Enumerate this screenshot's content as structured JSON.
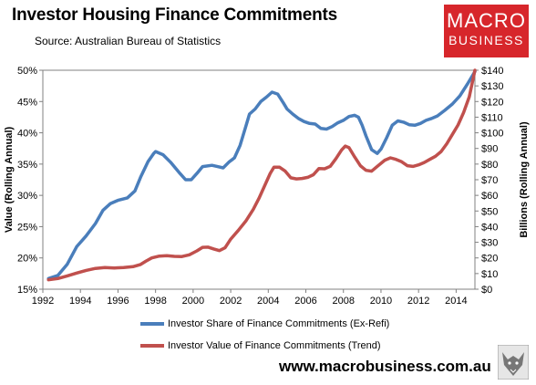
{
  "header": {
    "title": "Investor Housing Finance Commitments",
    "source": "Source: Australian Bureau of Statistics"
  },
  "logo": {
    "line1": "MACRO",
    "line2": "BUSINESS",
    "color": "#d7262b"
  },
  "footer": {
    "site": "www.macrobusiness.com.au"
  },
  "chart_data": {
    "type": "line",
    "xlim": [
      1992,
      2015
    ],
    "x_ticks": [
      "1992",
      "1994",
      "1996",
      "1998",
      "2000",
      "2002",
      "2004",
      "2006",
      "2008",
      "2010",
      "2012",
      "2014"
    ],
    "y_left": {
      "label": "Value (Rolling Annual)",
      "lim": [
        15,
        50
      ],
      "ticks": [
        "15%",
        "20%",
        "25%",
        "30%",
        "35%",
        "40%",
        "45%",
        "50%"
      ]
    },
    "y_right": {
      "label": "Billions (Rolling Annual)",
      "lim": [
        0,
        140
      ],
      "ticks": [
        "$0",
        "$10",
        "$20",
        "$30",
        "$40",
        "$50",
        "$60",
        "$70",
        "$80",
        "$90",
        "$100",
        "$110",
        "$120",
        "$130",
        "$140"
      ]
    },
    "grid": false,
    "legend_position": "bottom",
    "series": [
      {
        "name": "Investor Share of Finance Commitments (Ex-Refi)",
        "axis": "left",
        "color": "#4a7ebb",
        "points": [
          [
            1992.3,
            16.7
          ],
          [
            1992.8,
            17.2
          ],
          [
            1993.3,
            19.0
          ],
          [
            1993.8,
            21.8
          ],
          [
            1994.3,
            23.5
          ],
          [
            1994.8,
            25.5
          ],
          [
            1995.2,
            27.6
          ],
          [
            1995.6,
            28.7
          ],
          [
            1996.0,
            29.2
          ],
          [
            1996.5,
            29.6
          ],
          [
            1996.9,
            30.7
          ],
          [
            1997.2,
            32.9
          ],
          [
            1997.6,
            35.4
          ],
          [
            1997.9,
            36.7
          ],
          [
            1998.0,
            37.0
          ],
          [
            1998.4,
            36.5
          ],
          [
            1998.8,
            35.3
          ],
          [
            1999.3,
            33.5
          ],
          [
            1999.6,
            32.5
          ],
          [
            1999.9,
            32.5
          ],
          [
            2000.2,
            33.5
          ],
          [
            2000.5,
            34.6
          ],
          [
            2001.0,
            34.8
          ],
          [
            2001.3,
            34.6
          ],
          [
            2001.6,
            34.4
          ],
          [
            2001.9,
            35.3
          ],
          [
            2002.2,
            36.0
          ],
          [
            2002.5,
            38.0
          ],
          [
            2002.8,
            41.0
          ],
          [
            2003.0,
            43.0
          ],
          [
            2003.3,
            43.8
          ],
          [
            2003.6,
            45.0
          ],
          [
            2003.9,
            45.7
          ],
          [
            2004.2,
            46.5
          ],
          [
            2004.5,
            46.2
          ],
          [
            2004.8,
            44.8
          ],
          [
            2005.0,
            43.8
          ],
          [
            2005.3,
            43.0
          ],
          [
            2005.6,
            42.3
          ],
          [
            2005.9,
            41.8
          ],
          [
            2006.2,
            41.5
          ],
          [
            2006.5,
            41.4
          ],
          [
            2006.8,
            40.7
          ],
          [
            2007.1,
            40.6
          ],
          [
            2007.4,
            41.0
          ],
          [
            2007.7,
            41.6
          ],
          [
            2008.0,
            42.0
          ],
          [
            2008.3,
            42.6
          ],
          [
            2008.6,
            42.8
          ],
          [
            2008.8,
            42.5
          ],
          [
            2009.0,
            41.2
          ],
          [
            2009.2,
            39.5
          ],
          [
            2009.5,
            37.3
          ],
          [
            2009.8,
            36.7
          ],
          [
            2010.0,
            37.4
          ],
          [
            2010.3,
            39.2
          ],
          [
            2010.6,
            41.2
          ],
          [
            2010.9,
            41.9
          ],
          [
            2011.2,
            41.7
          ],
          [
            2011.5,
            41.3
          ],
          [
            2011.8,
            41.2
          ],
          [
            2012.1,
            41.5
          ],
          [
            2012.4,
            42.0
          ],
          [
            2012.7,
            42.3
          ],
          [
            2013.0,
            42.7
          ],
          [
            2013.4,
            43.6
          ],
          [
            2013.8,
            44.6
          ],
          [
            2014.2,
            45.9
          ],
          [
            2014.6,
            47.8
          ],
          [
            2015.0,
            49.8
          ]
        ]
      },
      {
        "name": "Investor Value of Finance Commitments (Trend)",
        "axis": "right",
        "color": "#c0504d",
        "points": [
          [
            1992.3,
            6.0
          ],
          [
            1992.8,
            6.8
          ],
          [
            1993.3,
            8.5
          ],
          [
            1993.8,
            10.3
          ],
          [
            1994.3,
            12.0
          ],
          [
            1994.8,
            13.3
          ],
          [
            1995.3,
            13.8
          ],
          [
            1995.8,
            13.6
          ],
          [
            1996.3,
            13.9
          ],
          [
            1996.8,
            14.4
          ],
          [
            1997.2,
            15.8
          ],
          [
            1997.5,
            18.0
          ],
          [
            1997.8,
            20.0
          ],
          [
            1998.2,
            21.2
          ],
          [
            1998.6,
            21.4
          ],
          [
            1999.0,
            21.0
          ],
          [
            1999.4,
            20.9
          ],
          [
            1999.8,
            22.0
          ],
          [
            2000.2,
            24.5
          ],
          [
            2000.5,
            26.8
          ],
          [
            2000.8,
            26.9
          ],
          [
            2001.1,
            25.7
          ],
          [
            2001.4,
            24.7
          ],
          [
            2001.7,
            26.5
          ],
          [
            2002.0,
            32.0
          ],
          [
            2002.4,
            37.5
          ],
          [
            2002.8,
            43.5
          ],
          [
            2003.2,
            51.0
          ],
          [
            2003.5,
            58.0
          ],
          [
            2003.8,
            66.0
          ],
          [
            2004.1,
            74.0
          ],
          [
            2004.3,
            78.0
          ],
          [
            2004.6,
            78.0
          ],
          [
            2004.9,
            75.5
          ],
          [
            2005.2,
            71.2
          ],
          [
            2005.5,
            70.5
          ],
          [
            2005.8,
            70.8
          ],
          [
            2006.1,
            71.5
          ],
          [
            2006.4,
            73.2
          ],
          [
            2006.7,
            77.2
          ],
          [
            2007.0,
            77.0
          ],
          [
            2007.3,
            78.6
          ],
          [
            2007.6,
            83.5
          ],
          [
            2007.9,
            89.0
          ],
          [
            2008.1,
            91.5
          ],
          [
            2008.3,
            90.5
          ],
          [
            2008.6,
            84.5
          ],
          [
            2008.9,
            79.0
          ],
          [
            2009.2,
            76.0
          ],
          [
            2009.5,
            75.5
          ],
          [
            2009.8,
            78.5
          ],
          [
            2010.2,
            82.5
          ],
          [
            2010.5,
            84.0
          ],
          [
            2010.8,
            83.0
          ],
          [
            2011.1,
            81.5
          ],
          [
            2011.4,
            79.0
          ],
          [
            2011.7,
            78.5
          ],
          [
            2012.0,
            79.5
          ],
          [
            2012.3,
            81.0
          ],
          [
            2012.6,
            83.0
          ],
          [
            2012.9,
            85.0
          ],
          [
            2013.2,
            88.0
          ],
          [
            2013.5,
            93.0
          ],
          [
            2013.8,
            99.0
          ],
          [
            2014.1,
            105.0
          ],
          [
            2014.4,
            113.0
          ],
          [
            2014.7,
            123.0
          ],
          [
            2015.0,
            140.0
          ]
        ]
      }
    ]
  }
}
